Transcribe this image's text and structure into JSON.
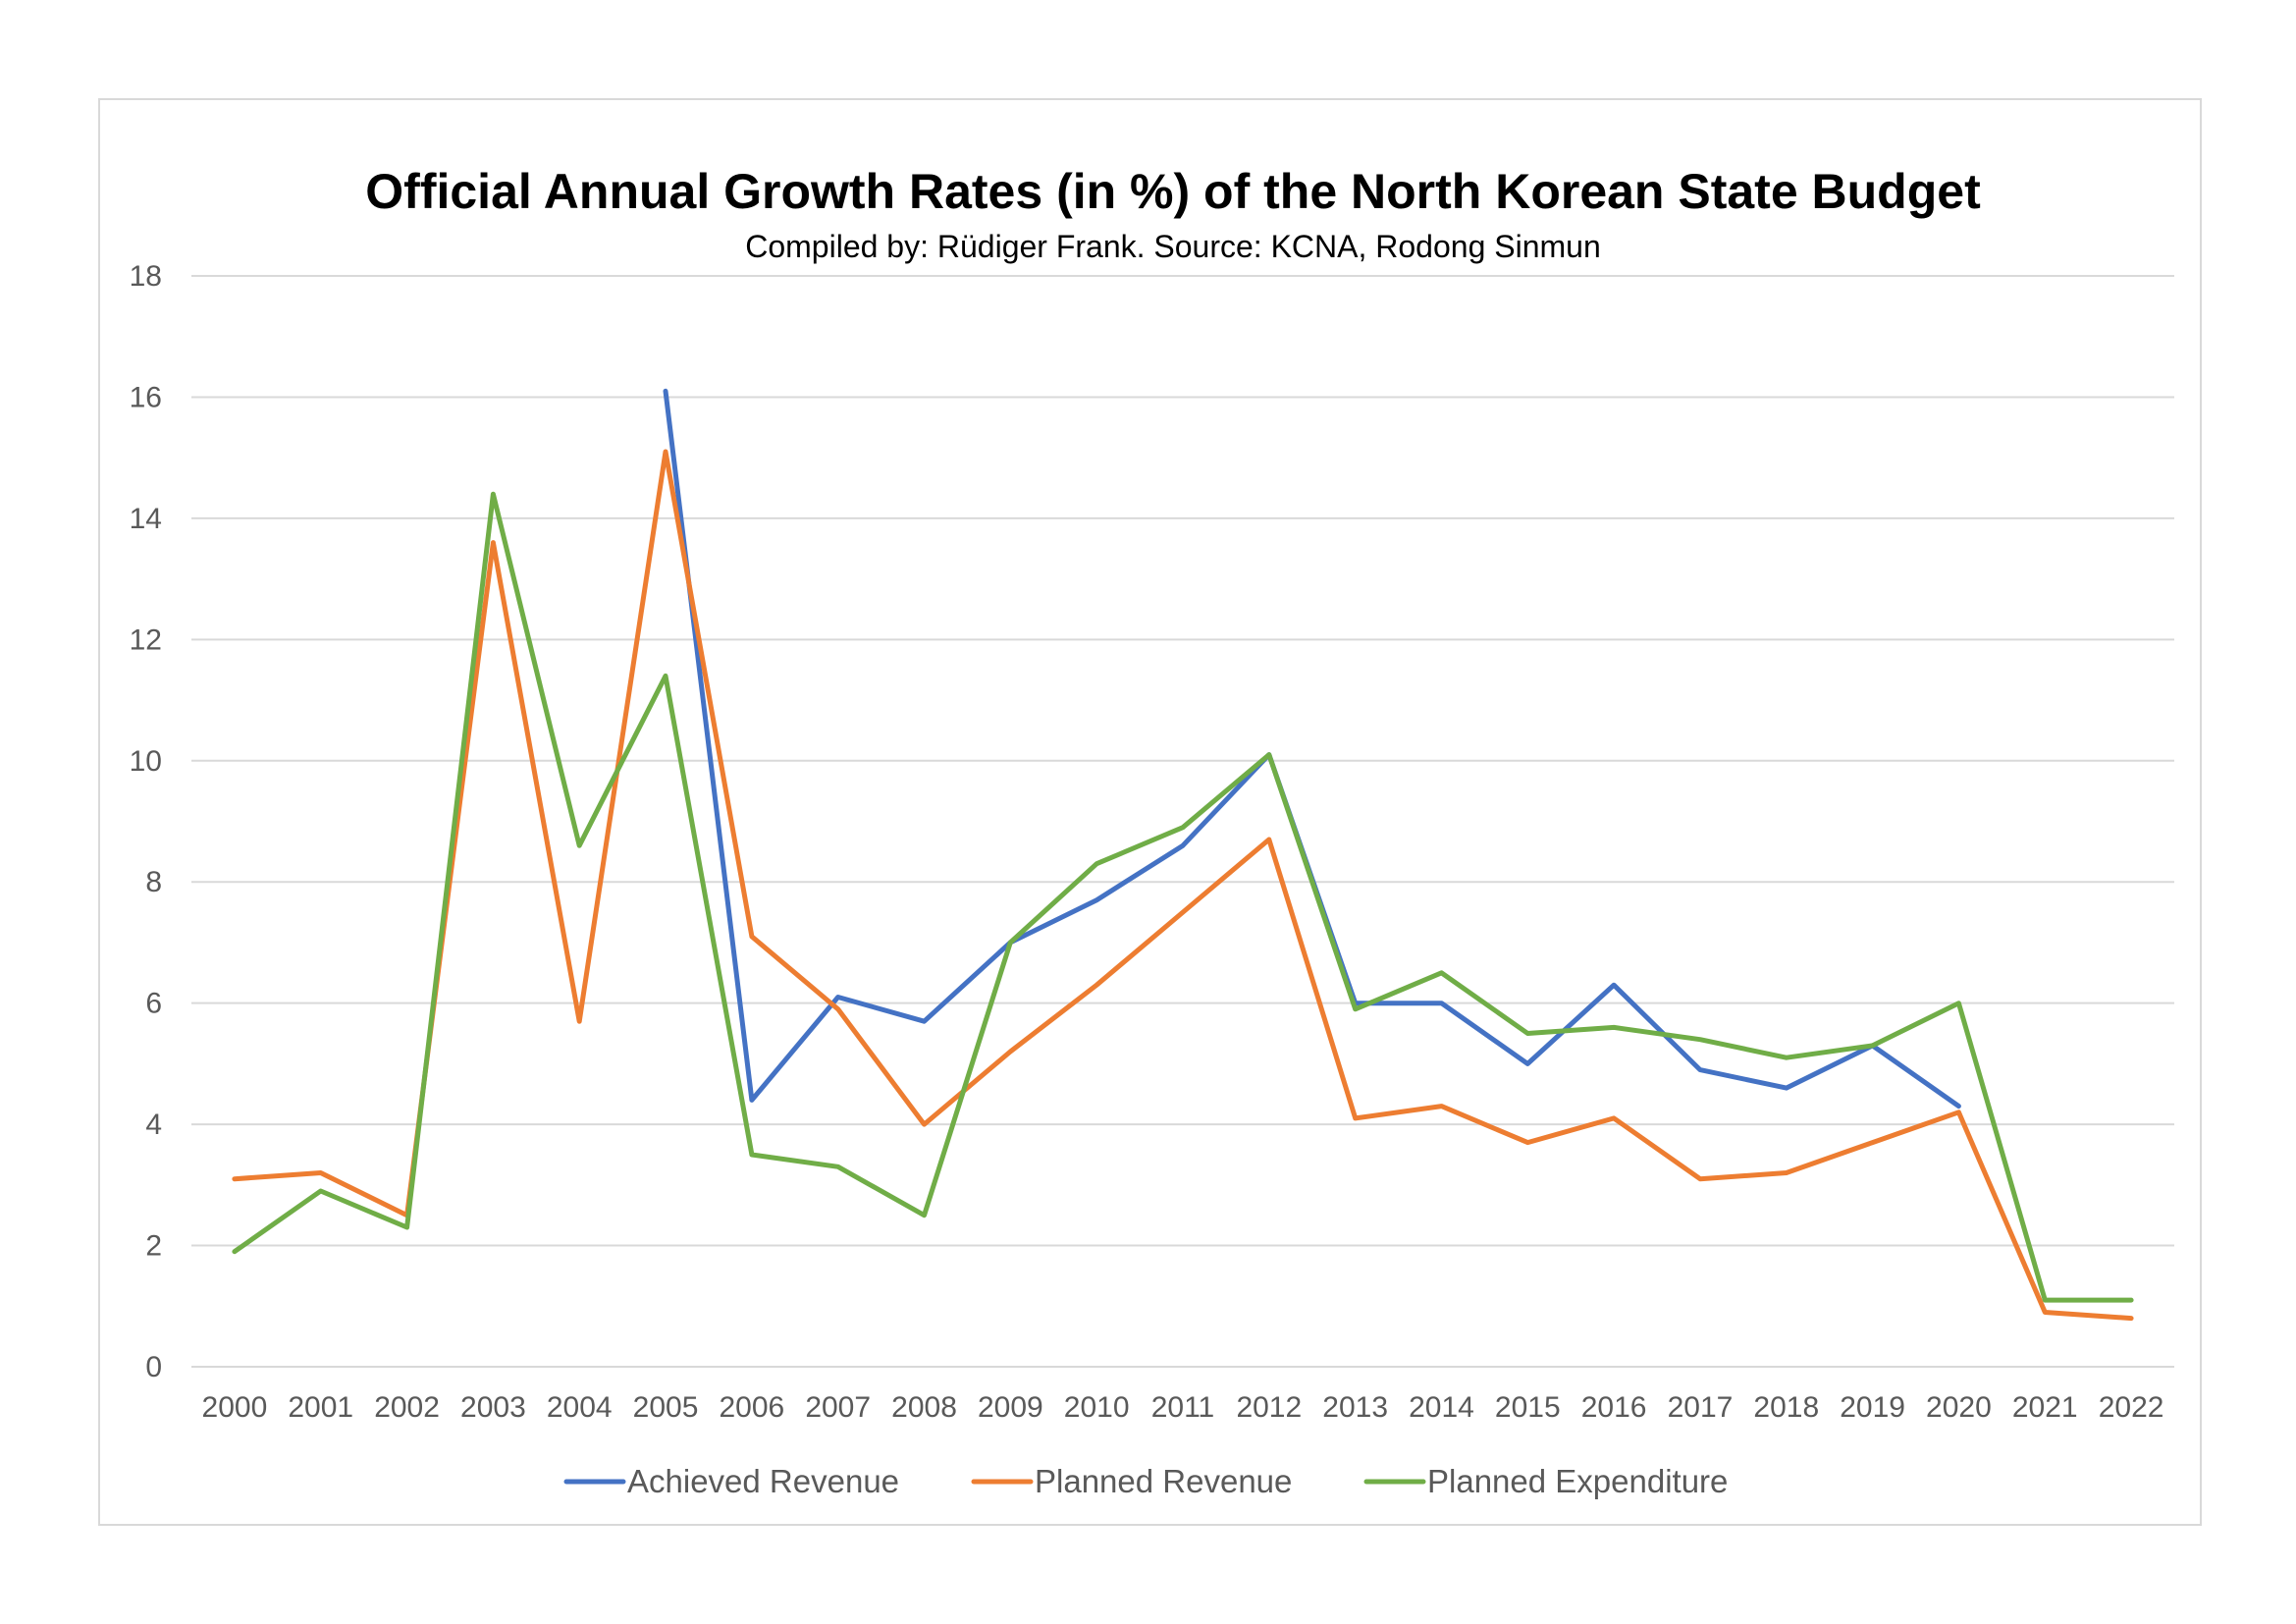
{
  "chart_data": {
    "type": "line",
    "title": "Official Annual Growth Rates (in %) of the North Korean State Budget",
    "subtitle": "Compiled by: Rüdiger Frank. Source: KCNA, Rodong Sinmun",
    "xlabel": "",
    "ylabel": "",
    "ylim": [
      0,
      18
    ],
    "yticks": [
      0,
      2,
      4,
      6,
      8,
      10,
      12,
      14,
      16,
      18
    ],
    "grid": true,
    "legend_position": "bottom",
    "categories": [
      "2000",
      "2001",
      "2002",
      "2003",
      "2004",
      "2005",
      "2006",
      "2007",
      "2008",
      "2009",
      "2010",
      "2011",
      "2012",
      "2013",
      "2014",
      "2015",
      "2016",
      "2017",
      "2018",
      "2019",
      "2020",
      "2021",
      "2022"
    ],
    "series": [
      {
        "name": "Achieved Revenue",
        "color": "#4472c4",
        "values": [
          null,
          null,
          null,
          null,
          null,
          16.1,
          4.4,
          6.1,
          5.7,
          7.0,
          7.7,
          8.6,
          10.1,
          6.0,
          6.0,
          5.0,
          6.3,
          4.9,
          4.6,
          5.3,
          4.3,
          null,
          null
        ]
      },
      {
        "name": "Planned Revenue",
        "color": "#ed7d31",
        "values": [
          3.1,
          3.2,
          2.5,
          13.6,
          5.7,
          15.1,
          7.1,
          5.9,
          4.0,
          5.2,
          6.3,
          7.5,
          8.7,
          4.1,
          4.3,
          3.7,
          4.1,
          3.1,
          3.2,
          3.7,
          4.2,
          0.9,
          0.8
        ]
      },
      {
        "name": "Planned Expenditure",
        "color": "#70ad47",
        "values": [
          1.9,
          2.9,
          2.3,
          14.4,
          8.6,
          11.4,
          3.5,
          3.3,
          2.5,
          7.0,
          8.3,
          8.9,
          10.1,
          5.9,
          6.5,
          5.5,
          5.6,
          5.4,
          5.1,
          5.3,
          6.0,
          1.1,
          1.1
        ]
      }
    ]
  }
}
